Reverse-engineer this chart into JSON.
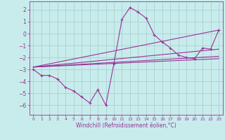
{
  "xlabel": "Windchill (Refroidissement éolien,°C)",
  "bg_color": "#c8ecec",
  "line_color": "#993399",
  "grid_color": "#aad0d0",
  "xlim": [
    -0.5,
    23.5
  ],
  "ylim": [
    -6.8,
    2.7
  ],
  "xticks": [
    0,
    1,
    2,
    3,
    4,
    5,
    6,
    7,
    8,
    9,
    10,
    11,
    12,
    13,
    14,
    15,
    16,
    17,
    18,
    19,
    20,
    21,
    22,
    23
  ],
  "yticks": [
    -6,
    -5,
    -4,
    -3,
    -2,
    -1,
    0,
    1,
    2
  ],
  "series1_x": [
    0,
    1,
    2,
    3,
    4,
    5,
    6,
    7,
    8,
    9,
    10,
    11,
    12,
    13,
    14,
    15,
    16,
    17,
    18,
    19,
    20,
    21,
    22,
    23
  ],
  "series1_y": [
    -3.0,
    -3.5,
    -3.5,
    -3.8,
    -4.5,
    -4.8,
    -5.3,
    -5.8,
    -4.7,
    -6.0,
    -2.5,
    1.2,
    2.2,
    1.8,
    1.3,
    -0.1,
    -0.7,
    -1.2,
    -1.8,
    -2.0,
    -2.1,
    -1.2,
    -1.3,
    0.3
  ],
  "series2_x": [
    0,
    23
  ],
  "series2_y": [
    -2.8,
    0.3
  ],
  "series3_x": [
    0,
    23
  ],
  "series3_y": [
    -2.8,
    -1.3
  ],
  "series4_x": [
    0,
    23
  ],
  "series4_y": [
    -2.8,
    -1.9
  ],
  "series5_x": [
    0,
    23
  ],
  "series5_y": [
    -2.8,
    -2.1
  ]
}
